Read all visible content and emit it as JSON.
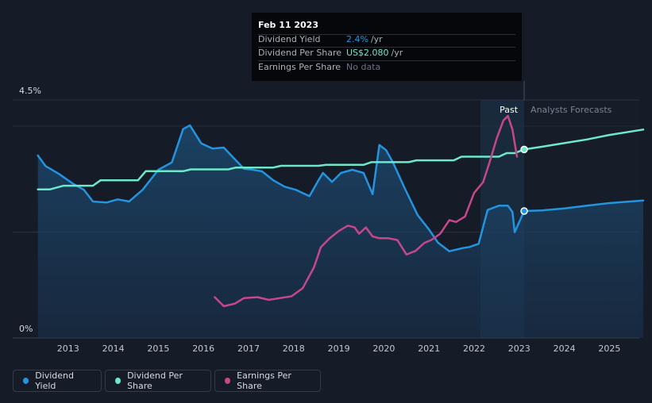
{
  "tooltip": {
    "date": "Feb 11 2023",
    "rows": [
      {
        "label": "Dividend Yield",
        "value": "2.4%",
        "unit": "/yr",
        "color": "#2394df"
      },
      {
        "label": "Dividend Per Share",
        "value": "US$2.080",
        "unit": "/yr",
        "color": "#6de8c9"
      },
      {
        "label": "Earnings Per Share",
        "value": "No data",
        "unit": "",
        "color": "#6b7280"
      }
    ]
  },
  "legend": [
    {
      "label": "Dividend Yield",
      "color": "#2394df"
    },
    {
      "label": "Dividend Per Share",
      "color": "#6de8c9"
    },
    {
      "label": "Earnings Per Share",
      "color": "#c6478a"
    }
  ],
  "chart_data": {
    "type": "line",
    "title": "",
    "xlabel": "",
    "ylabel": "",
    "x_ticks": [
      "2013",
      "2014",
      "2015",
      "2016",
      "2017",
      "2018",
      "2019",
      "2020",
      "2021",
      "2022",
      "2023",
      "2024",
      "2025"
    ],
    "y_ticks": [
      "0%",
      "4.5%"
    ],
    "xlim": [
      2012.3,
      2025.75
    ],
    "ylim": [
      0,
      4.5
    ],
    "grid": true,
    "legend_position": "bottom",
    "past_label": "Past",
    "forecast_label": "Analysts Forecasts",
    "forecast_start": 2023.11,
    "highlight_start": 2022.14,
    "series": [
      {
        "name": "Dividend Yield",
        "color": "#2394df",
        "unit": "%",
        "x": [
          2012.33,
          2012.5,
          2012.8,
          2013.1,
          2013.35,
          2013.55,
          2013.85,
          2014.1,
          2014.35,
          2014.65,
          2015.0,
          2015.3,
          2015.55,
          2015.7,
          2015.95,
          2016.2,
          2016.45,
          2016.65,
          2016.9,
          2017.1,
          2017.3,
          2017.55,
          2017.8,
          2018.05,
          2018.35,
          2018.55,
          2018.65,
          2018.85,
          2019.05,
          2019.3,
          2019.55,
          2019.75,
          2019.9,
          2020.05,
          2020.2,
          2020.45,
          2020.75,
          2021.0,
          2021.2,
          2021.45,
          2021.75,
          2021.9,
          2022.1,
          2022.3,
          2022.55,
          2022.75,
          2022.85,
          2022.9,
          2023.11,
          2023.5,
          2024.0,
          2024.5,
          2025.0,
          2025.75
        ],
        "values": [
          3.45,
          3.25,
          3.1,
          2.92,
          2.8,
          2.58,
          2.56,
          2.62,
          2.58,
          2.8,
          3.18,
          3.32,
          3.95,
          4.02,
          3.68,
          3.58,
          3.6,
          3.42,
          3.2,
          3.18,
          3.15,
          2.98,
          2.86,
          2.8,
          2.68,
          2.98,
          3.12,
          2.95,
          3.12,
          3.18,
          3.12,
          2.72,
          3.65,
          3.55,
          3.32,
          2.85,
          2.32,
          2.05,
          1.8,
          1.64,
          1.7,
          1.72,
          1.78,
          2.42,
          2.5,
          2.5,
          2.38,
          2.0,
          2.4,
          2.41,
          2.45,
          2.5,
          2.55,
          2.6
        ]
      },
      {
        "name": "Dividend Per Share",
        "color": "#6de8c9",
        "unit": "US$",
        "x": [
          2012.33,
          2012.6,
          2012.9,
          2013.2,
          2013.55,
          2013.72,
          2013.9,
          2014.2,
          2014.55,
          2014.72,
          2014.9,
          2015.2,
          2015.55,
          2015.72,
          2015.9,
          2016.2,
          2016.55,
          2016.72,
          2016.9,
          2017.2,
          2017.55,
          2017.72,
          2017.9,
          2018.2,
          2018.55,
          2018.72,
          2018.9,
          2019.2,
          2019.55,
          2019.72,
          2019.9,
          2020.2,
          2020.55,
          2020.72,
          2020.9,
          2021.2,
          2021.55,
          2021.72,
          2021.9,
          2022.2,
          2022.55,
          2022.72,
          2022.9,
          2023.11,
          2023.5,
          2024.0,
          2024.5,
          2025.0,
          2025.75
        ],
        "values": [
          1.64,
          1.64,
          1.68,
          1.68,
          1.68,
          1.74,
          1.74,
          1.74,
          1.74,
          1.84,
          1.84,
          1.84,
          1.84,
          1.86,
          1.86,
          1.86,
          1.86,
          1.88,
          1.88,
          1.88,
          1.88,
          1.9,
          1.9,
          1.9,
          1.9,
          1.91,
          1.91,
          1.91,
          1.91,
          1.94,
          1.94,
          1.94,
          1.94,
          1.96,
          1.96,
          1.96,
          1.96,
          2.0,
          2.0,
          2.0,
          2.0,
          2.04,
          2.04,
          2.08,
          2.11,
          2.15,
          2.19,
          2.24,
          2.3
        ]
      },
      {
        "name": "Earnings Per Share",
        "color": "#c6478a",
        "unit": "US$",
        "x": [
          2016.25,
          2016.45,
          2016.7,
          2016.9,
          2017.2,
          2017.45,
          2017.7,
          2017.95,
          2018.2,
          2018.45,
          2018.6,
          2018.8,
          2019.0,
          2019.2,
          2019.35,
          2019.45,
          2019.6,
          2019.75,
          2019.9,
          2020.1,
          2020.3,
          2020.5,
          2020.7,
          2020.9,
          2021.05,
          2021.25,
          2021.45,
          2021.6,
          2021.8,
          2022.0,
          2022.2,
          2022.35,
          2022.5,
          2022.65,
          2022.75,
          2022.85,
          2022.95
        ],
        "values": [
          0.45,
          0.35,
          0.38,
          0.44,
          0.45,
          0.42,
          0.44,
          0.46,
          0.55,
          0.78,
          1.0,
          1.1,
          1.18,
          1.24,
          1.22,
          1.15,
          1.22,
          1.12,
          1.1,
          1.1,
          1.08,
          0.92,
          0.96,
          1.05,
          1.08,
          1.15,
          1.3,
          1.28,
          1.34,
          1.6,
          1.72,
          1.95,
          2.2,
          2.4,
          2.45,
          2.3,
          2.0
        ]
      }
    ]
  }
}
